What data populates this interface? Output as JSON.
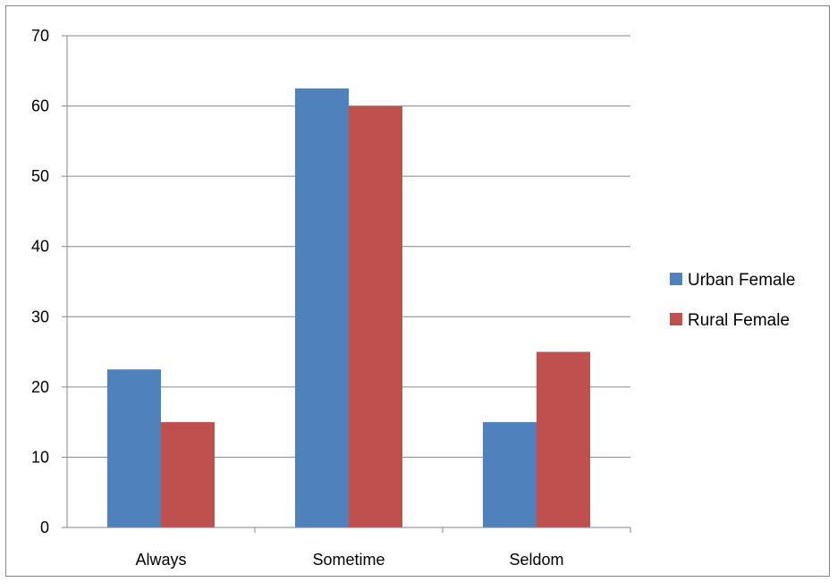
{
  "chart_data": {
    "type": "bar",
    "categories": [
      "Always",
      "Sometime",
      "Seldom"
    ],
    "series": [
      {
        "name": "Urban Female",
        "color": "#4F81BD",
        "values": [
          22.5,
          62.5,
          15
        ]
      },
      {
        "name": "Rural Female",
        "color": "#C0504D",
        "values": [
          15,
          60,
          25
        ]
      }
    ],
    "ylim": [
      0,
      70
    ],
    "yticks": [
      0,
      10,
      20,
      30,
      40,
      50,
      60,
      70
    ],
    "grid": true,
    "legend_position": "right"
  }
}
